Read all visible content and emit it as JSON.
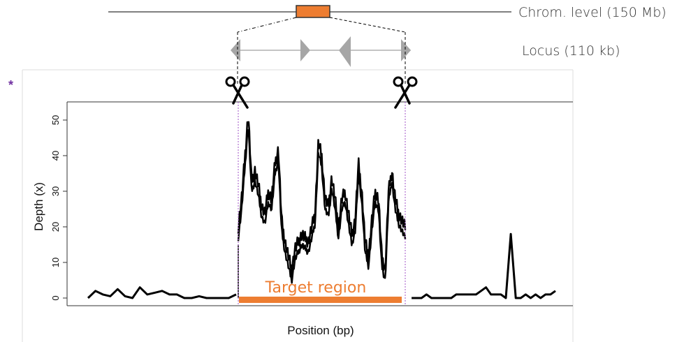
{
  "top_labels": {
    "chromosome": "Chrom. level (150 Mb)",
    "locus": "Locus (110 kb)"
  },
  "corner_mark": "*",
  "target_label": "Target region",
  "colors": {
    "accent_orange": "#ED7D31",
    "arrow_gray": "#A6A6A6",
    "cut_line_purple": "#B070D0",
    "coverage_black": "#000000",
    "panel_border": "#DDDDDD",
    "corner_mark": "#7030A0"
  },
  "icons": {
    "cut_site": "scissors-icon",
    "gene_arrow": "arrow-icon"
  },
  "chart_data": {
    "type": "line",
    "title": "",
    "xlabel": "Position (bp)",
    "ylabel": "Depth (x)",
    "ylim": [
      0,
      55
    ],
    "yticks": [
      0,
      10,
      20,
      30,
      40,
      50
    ],
    "xlim": [
      0,
      100
    ],
    "xticks_shown": false,
    "grid": false,
    "series": [
      {
        "x": [
          0,
          8,
          10,
          12,
          14,
          16,
          18,
          20,
          22,
          24,
          26,
          28,
          30,
          32,
          34,
          36,
          38,
          40,
          42,
          44,
          46,
          48,
          50,
          52,
          54,
          56,
          58,
          60,
          62,
          64,
          66,
          68,
          70,
          72,
          74,
          76,
          78,
          80,
          81,
          81.5,
          82,
          84,
          86,
          88,
          90,
          92,
          94,
          96,
          98,
          100
        ],
        "y": [
          0,
          0,
          1,
          2,
          1.5,
          1,
          0.5,
          0,
          1,
          1.5,
          2,
          1,
          1.5,
          1,
          0,
          0,
          0.5,
          0,
          0.5,
          0,
          0.5,
          0,
          0,
          0.5,
          0,
          0,
          0.5,
          0,
          0,
          0,
          0,
          1,
          1.5,
          2,
          1,
          0.5,
          1,
          0.5,
          15,
          18,
          0,
          0.5,
          1,
          0.5,
          1,
          0.5,
          0.5,
          1,
          0.5,
          0.5
        ]
      },
      {
        "name": "",
        "x": [
          0,
          2,
          4,
          6,
          8,
          10,
          12,
          14,
          16,
          18,
          20,
          22,
          24,
          26,
          28,
          30,
          32,
          34,
          36,
          38,
          40,
          42,
          44,
          46,
          48,
          50,
          52,
          54,
          56,
          58,
          60,
          62,
          64,
          66,
          68,
          70,
          72,
          74,
          76,
          78,
          80,
          82,
          84,
          86,
          88,
          90,
          92,
          94,
          96,
          98,
          100
        ],
        "y": [
          0,
          2,
          1,
          0.5,
          2.5,
          0.5,
          0,
          3,
          1,
          1.5,
          2,
          1,
          1,
          0,
          0,
          0.5,
          0,
          0,
          0,
          0,
          1,
          0,
          0,
          0,
          1,
          0,
          0,
          0,
          0,
          0,
          1,
          1,
          1,
          1,
          1,
          2,
          3,
          1,
          1,
          1,
          0,
          18,
          0,
          0,
          1,
          0,
          1,
          0,
          1,
          1,
          2
        ]
      }
    ],
    "target_coverage": {
      "x": [
        0,
        2,
        4,
        6,
        8,
        10,
        12,
        14,
        16,
        18,
        20,
        22,
        24,
        26,
        28,
        30,
        32,
        34,
        36,
        38,
        40,
        42,
        44,
        46,
        48,
        50,
        52,
        54,
        56,
        58,
        60,
        62,
        64,
        66,
        68,
        70,
        72,
        74,
        76,
        78,
        80,
        82,
        84,
        86,
        88,
        90,
        92,
        94,
        96,
        98,
        100
      ],
      "y": [
        20,
        28,
        40,
        52,
        33,
        36,
        32,
        26,
        24,
        30,
        28,
        38,
        42,
        22,
        16,
        12,
        8,
        14,
        16,
        18,
        17,
        16,
        20,
        24,
        44,
        40,
        28,
        26,
        34,
        28,
        20,
        28,
        30,
        24,
        18,
        22,
        38,
        30,
        16,
        12,
        22,
        30,
        28,
        12,
        8,
        30,
        36,
        28,
        24,
        22,
        20
      ]
    },
    "annotations": [
      "Target region"
    ]
  }
}
